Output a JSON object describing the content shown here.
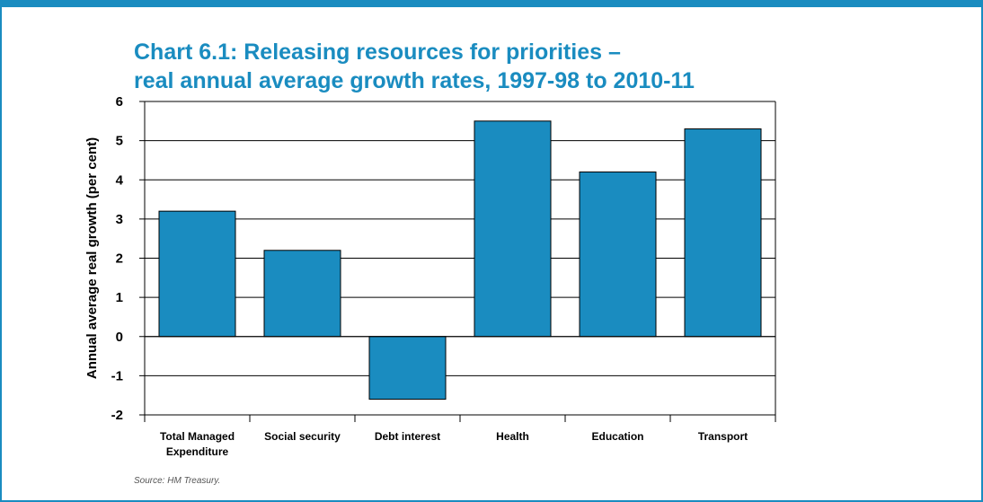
{
  "chart_data": {
    "type": "bar",
    "title_lines": [
      "Chart 6.1: Releasing resources for priorities –",
      "real annual average growth rates, 1997-98 to 2010-11"
    ],
    "categories": [
      [
        "Total Managed",
        "Expenditure"
      ],
      [
        "Social security"
      ],
      [
        "Debt interest"
      ],
      [
        "Health"
      ],
      [
        "Education"
      ],
      [
        "Transport"
      ]
    ],
    "values": [
      3.2,
      2.2,
      -1.6,
      5.5,
      4.2,
      5.3
    ],
    "ylabel": "Annual average real growth (per cent)",
    "ylim": [
      -2,
      6
    ],
    "yticks": [
      6,
      5,
      4,
      3,
      2,
      1,
      0,
      -1,
      -2
    ],
    "grid": true,
    "bar_color": "#1a8cc0"
  },
  "source": "Source: HM Treasury."
}
